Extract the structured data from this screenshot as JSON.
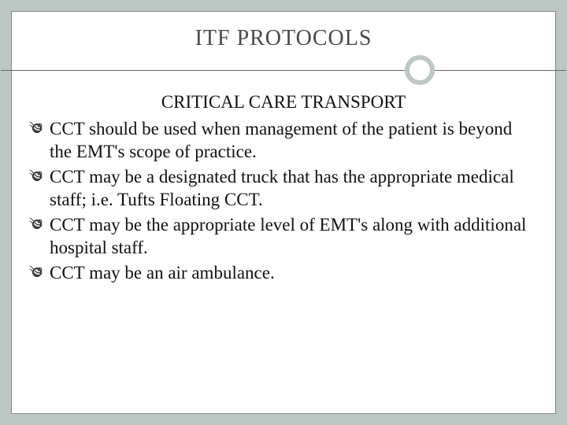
{
  "slide": {
    "title": "ITF PROTOCOLS",
    "subtitle": "CRITICAL CARE TRANSPORT",
    "bullets": [
      "CCT should be used when management of the patient is beyond the EMT's scope of practice.",
      "CCT may be a designated truck that has the appropriate medical staff; i.e. Tufts Floating CCT.",
      "CCT may be the appropriate level of EMT's along with additional hospital staff.",
      "CCT may be an air ambulance."
    ]
  },
  "style": {
    "background_color": "#bdc7c3",
    "inner_background": "#ffffff",
    "border_color": "#888888",
    "divider_color": "#666666",
    "circle_border_color": "#bdc7c3",
    "title_color": "#4a4a4a",
    "text_color": "#111111",
    "title_fontsize": 28,
    "subtitle_fontsize": 23,
    "body_fontsize": 23,
    "font_family": "Georgia, serif",
    "circle_position_pct": 75
  }
}
